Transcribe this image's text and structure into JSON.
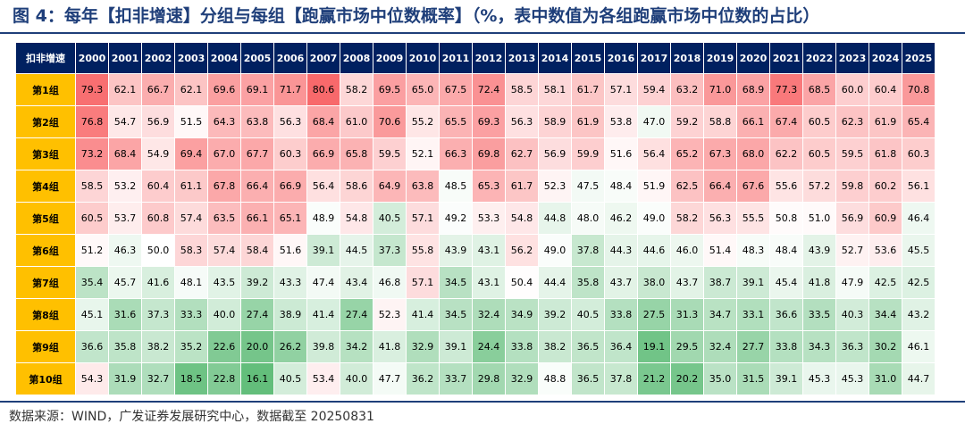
{
  "title": "图 4：每年【扣非增速】分组与每组【跑赢市场中位数概率】（%，表中数值为各组跑赢市场中位数的占比）",
  "source": "数据来源：WIND，广发证券发展研究中心，数据截至 20250831",
  "colors": {
    "header_bg": "#002060",
    "row_header_bg": "#ffc000",
    "high": "#f8696b",
    "mid": "#ffffff",
    "low": "#63be7b"
  },
  "chart_data": {
    "type": "heatmap",
    "corner_label": "扣非增速",
    "columns": [
      "2000",
      "2001",
      "2002",
      "2003",
      "2004",
      "2005",
      "2006",
      "2007",
      "2008",
      "2009",
      "2010",
      "2011",
      "2012",
      "2013",
      "2014",
      "2015",
      "2016",
      "2017",
      "2018",
      "2019",
      "2020",
      "2021",
      "2022",
      "2023",
      "2024",
      "2025"
    ],
    "rows": [
      "第1组",
      "第2组",
      "第3组",
      "第4组",
      "第5组",
      "第6组",
      "第7组",
      "第8组",
      "第9组",
      "第10组"
    ],
    "values": [
      [
        79.3,
        62.1,
        66.7,
        62.1,
        69.6,
        69.1,
        71.7,
        80.6,
        58.2,
        69.5,
        65.0,
        67.5,
        72.4,
        58.5,
        58.1,
        61.7,
        57.1,
        59.4,
        63.2,
        71.0,
        68.9,
        77.3,
        68.5,
        60.0,
        60.4,
        70.8
      ],
      [
        76.8,
        54.7,
        56.9,
        51.5,
        64.3,
        63.8,
        56.3,
        68.4,
        61.0,
        70.6,
        55.2,
        65.5,
        69.3,
        56.3,
        58.9,
        61.9,
        53.8,
        47.0,
        59.2,
        58.8,
        66.1,
        67.4,
        60.5,
        62.3,
        61.9,
        65.4
      ],
      [
        73.2,
        68.4,
        54.9,
        69.4,
        67.0,
        67.7,
        60.3,
        66.9,
        65.8,
        59.5,
        52.1,
        66.3,
        69.8,
        62.7,
        56.9,
        59.9,
        51.6,
        56.4,
        65.2,
        67.3,
        68.0,
        62.2,
        60.5,
        59.5,
        61.8,
        60.3
      ],
      [
        58.5,
        53.2,
        60.4,
        61.1,
        67.8,
        66.4,
        66.9,
        56.4,
        58.6,
        64.9,
        63.8,
        48.5,
        65.3,
        61.7,
        52.3,
        47.5,
        48.4,
        51.9,
        62.5,
        66.4,
        67.6,
        55.6,
        57.2,
        59.8,
        60.2,
        56.1
      ],
      [
        60.5,
        53.7,
        60.8,
        57.4,
        63.5,
        66.1,
        65.1,
        48.9,
        54.8,
        40.5,
        57.1,
        49.2,
        53.3,
        54.8,
        44.8,
        48.0,
        46.2,
        49.0,
        58.2,
        56.3,
        55.5,
        50.8,
        51.0,
        56.9,
        60.9,
        46.4
      ],
      [
        51.2,
        46.3,
        50.0,
        58.3,
        57.4,
        58.4,
        51.6,
        39.1,
        44.5,
        37.3,
        55.8,
        43.9,
        43.1,
        56.2,
        49.0,
        37.8,
        44.3,
        44.6,
        46.0,
        51.4,
        48.3,
        48.4,
        43.9,
        52.7,
        53.6,
        45.5
      ],
      [
        35.4,
        45.7,
        41.6,
        48.1,
        43.5,
        39.2,
        43.3,
        47.4,
        43.4,
        46.8,
        57.1,
        34.5,
        43.1,
        50.4,
        44.4,
        35.8,
        43.7,
        38.0,
        43.7,
        38.7,
        39.1,
        45.4,
        41.8,
        47.9,
        42.5,
        42.5
      ],
      [
        45.1,
        31.6,
        37.3,
        33.3,
        40.0,
        27.4,
        38.9,
        41.4,
        27.4,
        52.3,
        41.4,
        34.5,
        32.4,
        34.9,
        39.2,
        40.5,
        33.8,
        27.5,
        31.3,
        34.7,
        33.1,
        36.6,
        33.5,
        40.3,
        34.4,
        43.2
      ],
      [
        36.6,
        35.8,
        38.2,
        35.2,
        22.6,
        20.0,
        26.2,
        39.8,
        34.2,
        41.8,
        32.9,
        39.1,
        24.4,
        33.8,
        38.2,
        36.5,
        36.4,
        19.1,
        29.5,
        32.4,
        27.7,
        33.8,
        34.3,
        36.3,
        30.2,
        46.1
      ],
      [
        54.3,
        31.9,
        32.7,
        18.5,
        22.8,
        16.1,
        40.5,
        53.4,
        40.0,
        47.7,
        36.2,
        33.7,
        29.8,
        32.9,
        48.8,
        36.5,
        37.8,
        21.2,
        20.2,
        35.0,
        31.5,
        39.1,
        45.3,
        45.3,
        31.0,
        44.7
      ]
    ]
  }
}
